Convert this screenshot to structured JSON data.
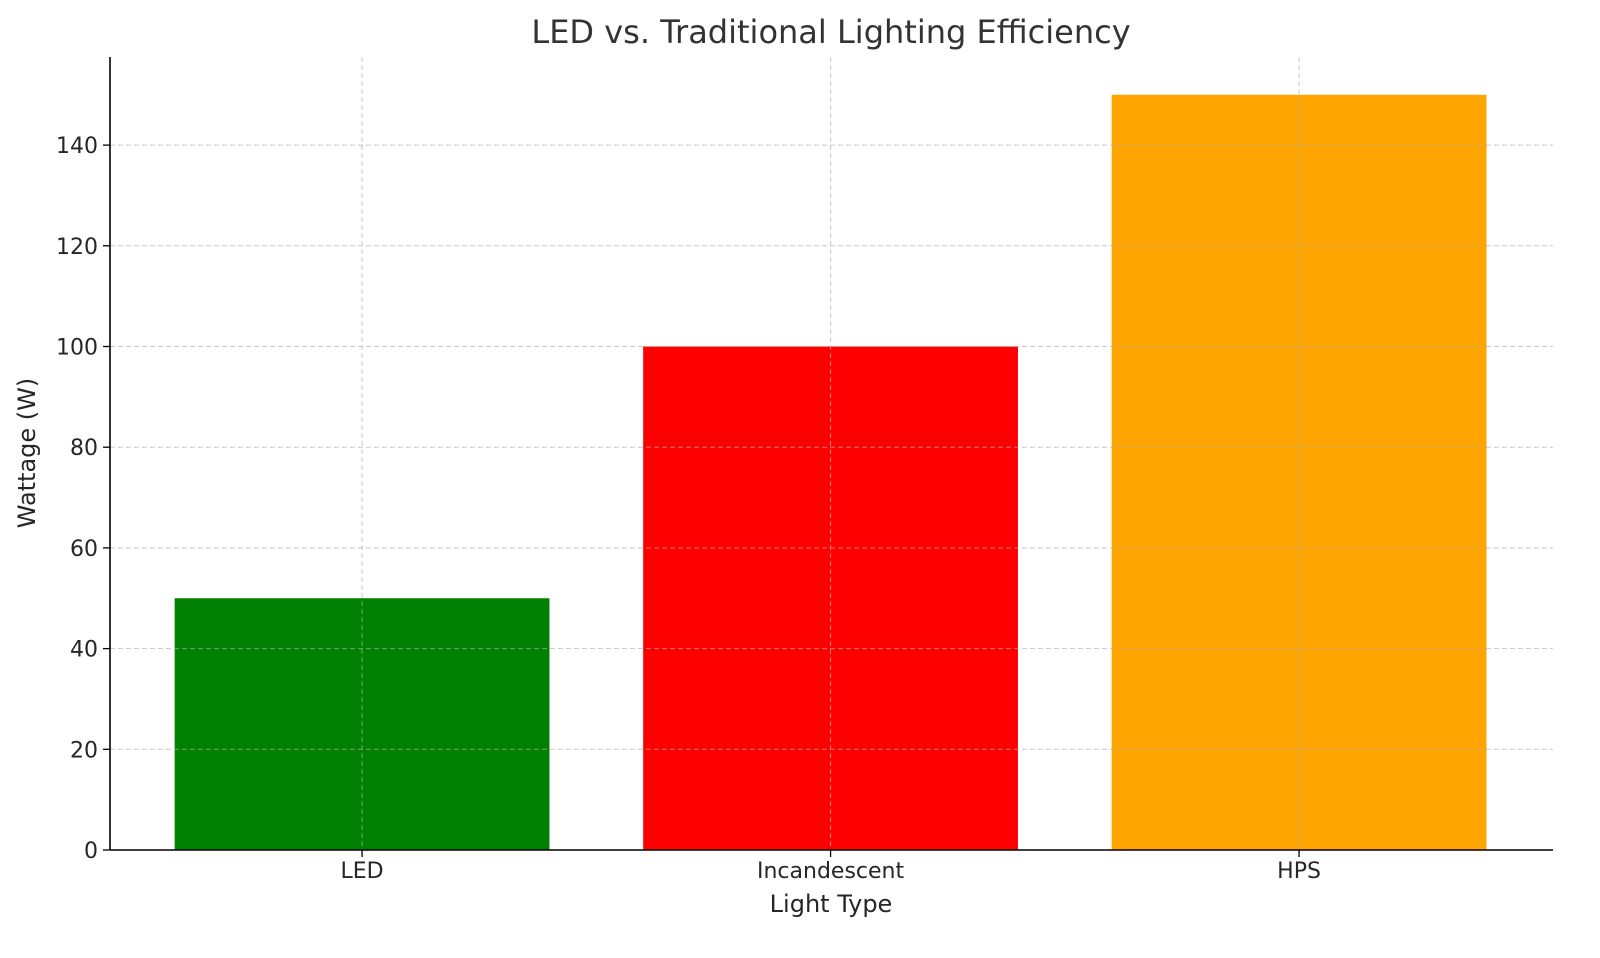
{
  "chart_data": {
    "type": "bar",
    "title": "LED vs. Traditional Lighting Efficiency",
    "xlabel": "Light Type",
    "ylabel": "Wattage (W)",
    "categories": [
      "LED",
      "Incandescent",
      "HPS"
    ],
    "values": [
      50,
      100,
      150
    ],
    "colors": [
      "#008000",
      "#ff0000",
      "#ffa500"
    ],
    "ylim": [
      0,
      157.5
    ],
    "yticks": [
      0,
      20,
      40,
      60,
      80,
      100,
      120,
      140
    ],
    "grid": true,
    "legend": "none"
  }
}
